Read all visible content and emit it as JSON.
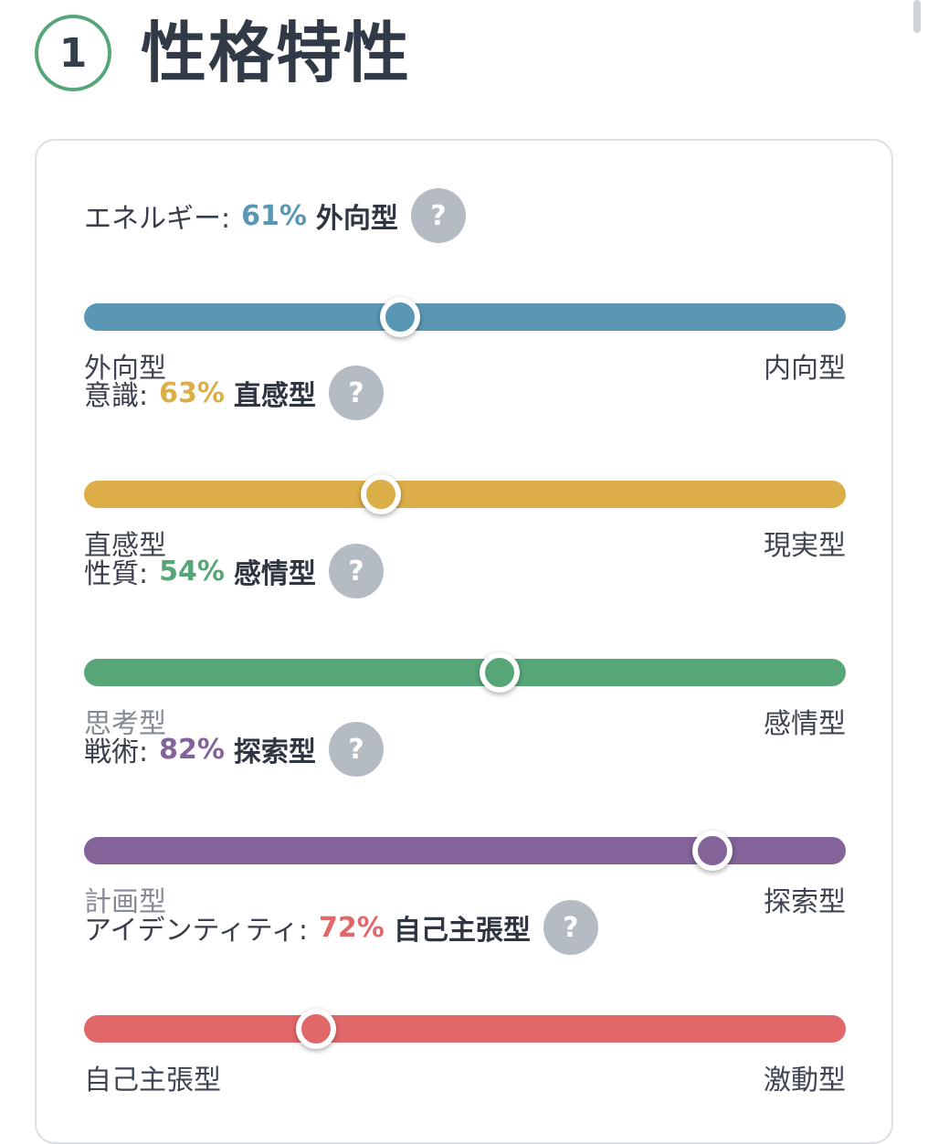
{
  "header": {
    "step_number": "1",
    "title": "性格特性"
  },
  "traits": [
    {
      "label": "エネルギー:",
      "percent": "61%",
      "type": "外向型",
      "help": "?",
      "left_label": "外向型",
      "right_label": "内向型",
      "muted_side": "none",
      "color": "#5a97b5",
      "position": 0.415
    },
    {
      "label": "意識:",
      "percent": "63%",
      "type": "直感型",
      "help": "?",
      "left_label": "直感型",
      "right_label": "現実型",
      "muted_side": "none",
      "color": "#dcae48",
      "position": 0.39
    },
    {
      "label": "性質:",
      "percent": "54%",
      "type": "感情型",
      "help": "?",
      "left_label": "思考型",
      "right_label": "感情型",
      "muted_side": "left",
      "color": "#56a678",
      "position": 0.545
    },
    {
      "label": "戦術:",
      "percent": "82%",
      "type": "探索型",
      "help": "?",
      "left_label": "計画型",
      "right_label": "探索型",
      "muted_side": "left",
      "color": "#83639a",
      "position": 0.825
    },
    {
      "label": "アイデンティティ:",
      "percent": "72%",
      "type": "自己主張型",
      "help": "?",
      "left_label": "自己主張型",
      "right_label": "激動型",
      "muted_side": "none",
      "color": "#e26769",
      "position": 0.305
    }
  ]
}
